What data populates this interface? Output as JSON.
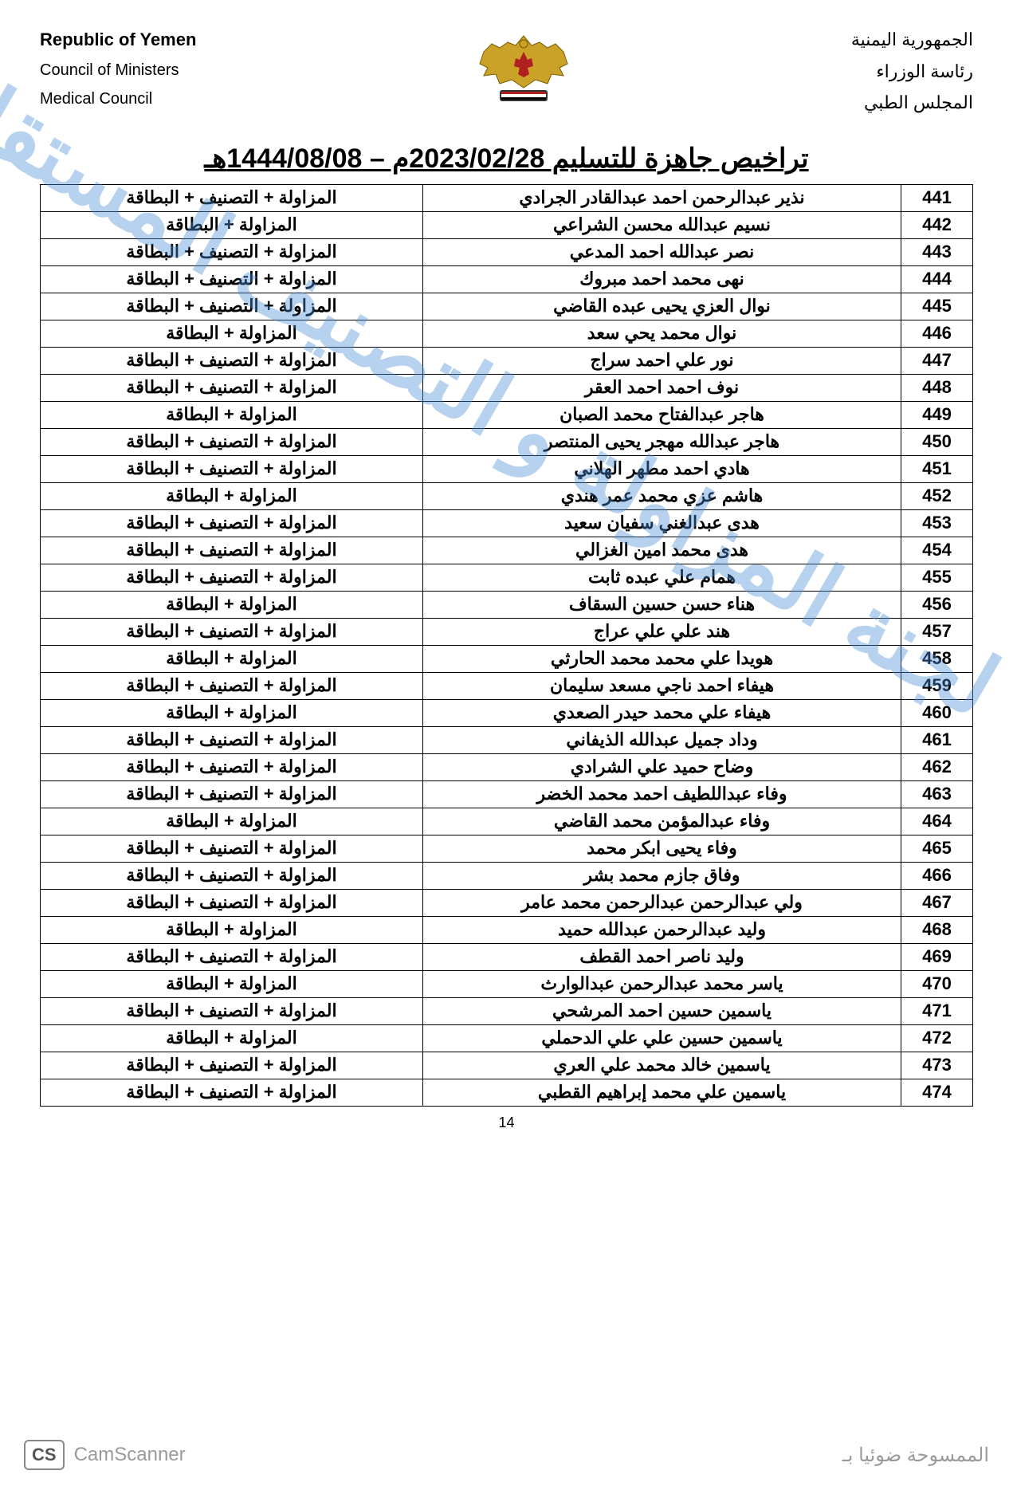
{
  "header": {
    "left": {
      "line1": "Republic of Yemen",
      "line2": "Council of Ministers",
      "line3": "Medical Council"
    },
    "right": {
      "line1": "الجمهورية اليمنية",
      "line2": "رئاسة الوزراء",
      "line3": "المجلس الطبي"
    }
  },
  "title": "تراخيص جاهزة للتسليم 2023/02/28م – 1444/08/08هـ",
  "watermark": "لجنة المزاولة و التصنيف المستقلة",
  "docs_full": "المزاولة + التصنيف + البطاقة",
  "docs_short": "المزاولة + البطاقة",
  "rows": [
    {
      "n": "441",
      "name": "نذير عبدالرحمن احمد عبدالقادر الجرادي",
      "d": "full"
    },
    {
      "n": "442",
      "name": "نسيم عبدالله محسن الشراعي",
      "d": "short"
    },
    {
      "n": "443",
      "name": "نصر عبدالله احمد المدعي",
      "d": "full"
    },
    {
      "n": "444",
      "name": "نهى محمد احمد مبروك",
      "d": "full"
    },
    {
      "n": "445",
      "name": "نوال العزي يحيى عبده القاضي",
      "d": "full"
    },
    {
      "n": "446",
      "name": "نوال محمد يحي سعد",
      "d": "short"
    },
    {
      "n": "447",
      "name": "نور علي احمد سراج",
      "d": "full"
    },
    {
      "n": "448",
      "name": "نوف احمد احمد العقر",
      "d": "full"
    },
    {
      "n": "449",
      "name": "هاجر عبدالفتاح محمد الصبان",
      "d": "short"
    },
    {
      "n": "450",
      "name": "هاجر عبدالله مهجر يحيى المنتصر",
      "d": "full"
    },
    {
      "n": "451",
      "name": "هادي احمد مطهر الهلاني",
      "d": "full"
    },
    {
      "n": "452",
      "name": "هاشم عزي محمد عمر هندي",
      "d": "short"
    },
    {
      "n": "453",
      "name": "هدى عبدالغني سفيان سعيد",
      "d": "full"
    },
    {
      "n": "454",
      "name": "هدى محمد امين الغزالي",
      "d": "full"
    },
    {
      "n": "455",
      "name": "همام علي عبده ثابت",
      "d": "full"
    },
    {
      "n": "456",
      "name": "هناء حسن حسين السقاف",
      "d": "short"
    },
    {
      "n": "457",
      "name": "هند علي علي عراج",
      "d": "full"
    },
    {
      "n": "458",
      "name": "هويدا علي محمد محمد الحارثي",
      "d": "short"
    },
    {
      "n": "459",
      "name": "هيفاء احمد ناجي مسعد سليمان",
      "d": "full"
    },
    {
      "n": "460",
      "name": "هيفاء علي محمد حيدر الصعدي",
      "d": "short"
    },
    {
      "n": "461",
      "name": "وداد جميل عبدالله الذيفاني",
      "d": "full"
    },
    {
      "n": "462",
      "name": "وضاح حميد علي الشرادي",
      "d": "full"
    },
    {
      "n": "463",
      "name": "وفاء عبداللطيف احمد محمد الخضر",
      "d": "full"
    },
    {
      "n": "464",
      "name": "وفاء عبدالمؤمن محمد القاضي",
      "d": "short"
    },
    {
      "n": "465",
      "name": "وفاء يحيى ابكر محمد",
      "d": "full"
    },
    {
      "n": "466",
      "name": "وفاق جازم محمد بشر",
      "d": "full"
    },
    {
      "n": "467",
      "name": "ولي عبدالرحمن عبدالرحمن محمد عامر",
      "d": "full"
    },
    {
      "n": "468",
      "name": "وليد عبدالرحمن عبدالله حميد",
      "d": "short"
    },
    {
      "n": "469",
      "name": "وليد ناصر احمد القطف",
      "d": "full"
    },
    {
      "n": "470",
      "name": "ياسر محمد عبدالرحمن عبدالوارث",
      "d": "short"
    },
    {
      "n": "471",
      "name": "ياسمين حسين احمد المرشحي",
      "d": "full"
    },
    {
      "n": "472",
      "name": "ياسمين حسين علي علي الدحملي",
      "d": "short"
    },
    {
      "n": "473",
      "name": "ياسمين خالد محمد علي العري",
      "d": "full"
    },
    {
      "n": "474",
      "name": "ياسمين علي محمد إبراهيم القطبي",
      "d": "full"
    }
  ],
  "page_number": "14",
  "footer": {
    "badge": "CS",
    "brand": "CamScanner",
    "text": "الممسوحة ضوئيا بـ"
  },
  "colors": {
    "text": "#000000",
    "watermark": "#4a90d9",
    "footer": "#9a9a9a",
    "emblem_gold": "#c9a227",
    "emblem_red": "#b02020",
    "emblem_dark": "#333333"
  }
}
